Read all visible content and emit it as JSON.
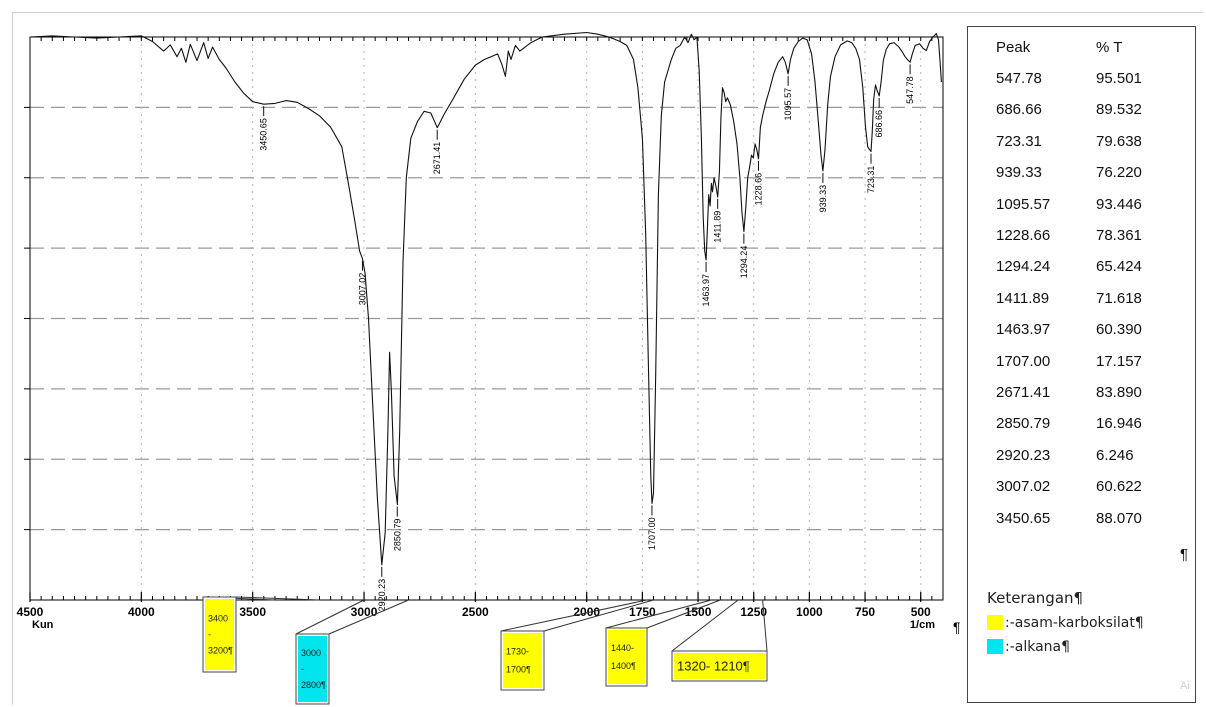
{
  "chart_data": {
    "type": "line",
    "x_unit_label": "1/cm",
    "x_corner_label": "Kun",
    "xlim": [
      4500,
      400
    ],
    "x_ticks": [
      "4500",
      "4000",
      "3500",
      "3000",
      "2500",
      "2000",
      "1750",
      "1500",
      "1250",
      "1000",
      "750",
      "500"
    ],
    "x_tick_values": [
      4500,
      4000,
      3500,
      3000,
      2500,
      2000,
      1750,
      1500,
      1250,
      1000,
      750,
      500
    ],
    "ylim": [
      0,
      100
    ],
    "grid": true,
    "series": [
      {
        "points": [
          [
            4500,
            100
          ],
          [
            4400,
            100.2
          ],
          [
            4300,
            100
          ],
          [
            4200,
            99.8
          ],
          [
            4100,
            100
          ],
          [
            4000,
            100.2
          ],
          [
            3950,
            99.2
          ],
          [
            3900,
            97.5
          ],
          [
            3870,
            98.6
          ],
          [
            3840,
            96.5
          ],
          [
            3820,
            98
          ],
          [
            3800,
            95.5
          ],
          [
            3780,
            98.7
          ],
          [
            3750,
            95.8
          ],
          [
            3720,
            99
          ],
          [
            3700,
            96.2
          ],
          [
            3680,
            98.2
          ],
          [
            3650,
            96
          ],
          [
            3620,
            94.5
          ],
          [
            3580,
            92
          ],
          [
            3540,
            90
          ],
          [
            3500,
            88.5
          ],
          [
            3450,
            88.07
          ],
          [
            3400,
            88.2
          ],
          [
            3350,
            88.7
          ],
          [
            3300,
            88.4
          ],
          [
            3250,
            87.3
          ],
          [
            3200,
            86
          ],
          [
            3150,
            84
          ],
          [
            3100,
            80.5
          ],
          [
            3070,
            74
          ],
          [
            3040,
            67
          ],
          [
            3020,
            62
          ],
          [
            3007,
            60.6
          ],
          [
            2995,
            58
          ],
          [
            2980,
            50
          ],
          [
            2960,
            34
          ],
          [
            2940,
            18
          ],
          [
            2920,
            6.25
          ],
          [
            2905,
            12
          ],
          [
            2893,
            30
          ],
          [
            2885,
            44
          ],
          [
            2877,
            37
          ],
          [
            2865,
            22
          ],
          [
            2850,
            16.95
          ],
          [
            2840,
            30
          ],
          [
            2825,
            60
          ],
          [
            2810,
            75
          ],
          [
            2790,
            82
          ],
          [
            2760,
            85
          ],
          [
            2730,
            86.8
          ],
          [
            2700,
            86.5
          ],
          [
            2671,
            83.89
          ],
          [
            2640,
            86.3
          ],
          [
            2600,
            89
          ],
          [
            2550,
            92.5
          ],
          [
            2500,
            95
          ],
          [
            2460,
            96
          ],
          [
            2430,
            96.5
          ],
          [
            2400,
            97
          ],
          [
            2380,
            95
          ],
          [
            2365,
            93
          ],
          [
            2352,
            97.5
          ],
          [
            2340,
            96
          ],
          [
            2320,
            98.5
          ],
          [
            2300,
            97.5
          ],
          [
            2250,
            99
          ],
          [
            2200,
            100
          ],
          [
            2100,
            100.5
          ],
          [
            2000,
            100.8
          ],
          [
            1950,
            100.5
          ],
          [
            1900,
            100
          ],
          [
            1850,
            99.2
          ],
          [
            1820,
            98.5
          ],
          [
            1790,
            96
          ],
          [
            1770,
            91
          ],
          [
            1750,
            82
          ],
          [
            1735,
            65
          ],
          [
            1722,
            40
          ],
          [
            1712,
            22
          ],
          [
            1707,
            17.16
          ],
          [
            1700,
            19
          ],
          [
            1690,
            40
          ],
          [
            1678,
            72
          ],
          [
            1665,
            86
          ],
          [
            1650,
            92
          ],
          [
            1620,
            96
          ],
          [
            1600,
            98
          ],
          [
            1580,
            98.5
          ],
          [
            1560,
            100
          ],
          [
            1545,
            99
          ],
          [
            1530,
            100.5
          ],
          [
            1518,
            99.5
          ],
          [
            1505,
            100
          ],
          [
            1495,
            94
          ],
          [
            1485,
            82
          ],
          [
            1477,
            68
          ],
          [
            1470,
            62
          ],
          [
            1463.97,
            60.39
          ],
          [
            1458,
            66
          ],
          [
            1452,
            72
          ],
          [
            1446,
            70
          ],
          [
            1440,
            74
          ],
          [
            1435,
            72.5
          ],
          [
            1428,
            75
          ],
          [
            1420,
            73.5
          ],
          [
            1411.89,
            71.6
          ],
          [
            1404,
            76
          ],
          [
            1397,
            86
          ],
          [
            1390,
            91
          ],
          [
            1382,
            90
          ],
          [
            1376,
            88.5
          ],
          [
            1368,
            89.2
          ],
          [
            1355,
            88
          ],
          [
            1340,
            85
          ],
          [
            1325,
            81
          ],
          [
            1312,
            75
          ],
          [
            1303,
            69
          ],
          [
            1294.24,
            65.42
          ],
          [
            1285,
            70
          ],
          [
            1277,
            75
          ],
          [
            1268,
            77
          ],
          [
            1260,
            79
          ],
          [
            1252,
            78.5
          ],
          [
            1244,
            81
          ],
          [
            1236,
            80
          ],
          [
            1228.66,
            78.36
          ],
          [
            1220,
            84
          ],
          [
            1210,
            86
          ],
          [
            1195,
            88.5
          ],
          [
            1180,
            90.5
          ],
          [
            1160,
            93.5
          ],
          [
            1140,
            95.5
          ],
          [
            1120,
            96.5
          ],
          [
            1108,
            95.5
          ],
          [
            1095.57,
            93.45
          ],
          [
            1085,
            96
          ],
          [
            1070,
            98
          ],
          [
            1050,
            99.2
          ],
          [
            1030,
            99.8
          ],
          [
            1010,
            99.5
          ],
          [
            990,
            97
          ],
          [
            975,
            92
          ],
          [
            960,
            85
          ],
          [
            948,
            79
          ],
          [
            939.33,
            76.22
          ],
          [
            930,
            80
          ],
          [
            918,
            88
          ],
          [
            905,
            93
          ],
          [
            885,
            96.5
          ],
          [
            860,
            98.6
          ],
          [
            830,
            99.3
          ],
          [
            810,
            99
          ],
          [
            792,
            98
          ],
          [
            775,
            96
          ],
          [
            760,
            91
          ],
          [
            748,
            84
          ],
          [
            738,
            80.5
          ],
          [
            730,
            80
          ],
          [
            723.31,
            79.64
          ],
          [
            718,
            83
          ],
          [
            711,
            89
          ],
          [
            703,
            91.5
          ],
          [
            696,
            90.5
          ],
          [
            686.66,
            89.53
          ],
          [
            678,
            92
          ],
          [
            668,
            95.8
          ],
          [
            655,
            97.8
          ],
          [
            640,
            98.8
          ],
          [
            620,
            99
          ],
          [
            600,
            98.3
          ],
          [
            585,
            97.5
          ],
          [
            570,
            96.5
          ],
          [
            560,
            96
          ],
          [
            547.78,
            95.5
          ],
          [
            538,
            97
          ],
          [
            525,
            98.5
          ],
          [
            505,
            98.8
          ],
          [
            490,
            98
          ],
          [
            475,
            97.6
          ],
          [
            460,
            99.2
          ],
          [
            445,
            100
          ],
          [
            430,
            100.6
          ],
          [
            420,
            99.5
          ],
          [
            412,
            95
          ],
          [
            407,
            92
          ]
        ]
      }
    ],
    "peaks": [
      {
        "x": 547.78,
        "y": 95.501,
        "label": "547.78"
      },
      {
        "x": 686.66,
        "y": 89.532,
        "label": "686.66"
      },
      {
        "x": 723.31,
        "y": 79.638,
        "label": "723.31"
      },
      {
        "x": 939.33,
        "y": 76.22,
        "label": "939.33"
      },
      {
        "x": 1095.57,
        "y": 93.446,
        "label": "1095.57"
      },
      {
        "x": 1228.66,
        "y": 78.361,
        "label": "1228.66"
      },
      {
        "x": 1294.24,
        "y": 65.424,
        "label": "1294.24"
      },
      {
        "x": 1411.89,
        "y": 71.618,
        "label": "1411.89"
      },
      {
        "x": 1463.97,
        "y": 60.39,
        "label": "1463.97"
      },
      {
        "x": 1707.0,
        "y": 17.157,
        "label": "1707.00"
      },
      {
        "x": 2671.41,
        "y": 83.89,
        "label": "2671.41"
      },
      {
        "x": 2850.79,
        "y": 16.946,
        "label": "2850.79"
      },
      {
        "x": 2920.23,
        "y": 6.246,
        "label": "2920.23"
      },
      {
        "x": 3007.02,
        "y": 60.622,
        "label": "3007.02"
      },
      {
        "x": 3450.65,
        "y": 88.07,
        "label": "3450.65"
      }
    ],
    "range_callouts": [
      {
        "top_text": "3400",
        "mid_text": "-",
        "bottom_text": "3200¶",
        "color": "#ffff00",
        "from": 3400,
        "to": 3200
      },
      {
        "top_text": "3000",
        "mid_text": "-",
        "bottom_text": "2800¶",
        "color": "#00e5ee",
        "from": 3000,
        "to": 2800
      },
      {
        "top_text": "1730-",
        "bottom_text": "1700¶",
        "color": "#ffff00",
        "from": 1730,
        "to": 1700
      },
      {
        "top_text": "1440-",
        "bottom_text": "1400¶",
        "color": "#ffff00",
        "from": 1440,
        "to": 1400
      },
      {
        "top_text": "1320- 1210¶",
        "color": "#ffff00",
        "from": 1320,
        "to": 1210
      }
    ]
  },
  "peak_table": {
    "header": [
      "Peak",
      "% T"
    ],
    "rows": [
      [
        "547.78",
        "95.501"
      ],
      [
        "686.66",
        "89.532"
      ],
      [
        "723.31",
        "79.638"
      ],
      [
        "939.33",
        "76.220"
      ],
      [
        "1095.57",
        "93.446"
      ],
      [
        "1228.66",
        "78.361"
      ],
      [
        "1294.24",
        "65.424"
      ],
      [
        "1411.89",
        "71.618"
      ],
      [
        "1463.97",
        "60.390"
      ],
      [
        "1707.00",
        "17.157"
      ],
      [
        "2671.41",
        "83.890"
      ],
      [
        "2850.79",
        "16.946"
      ],
      [
        "2920.23",
        "6.246"
      ],
      [
        "3007.02",
        "60.622"
      ],
      [
        "3450.65",
        "88.070"
      ]
    ],
    "end_mark": "¶"
  },
  "legend": {
    "title": "Keterangan¶",
    "items": [
      {
        "color": "#ffff00",
        "text": ":-asam-karboksilat¶"
      },
      {
        "color": "#00e5ee",
        "text": ":-alkana¶"
      }
    ]
  },
  "pilcrow_mark": "¶",
  "corner_mark": "Ai"
}
